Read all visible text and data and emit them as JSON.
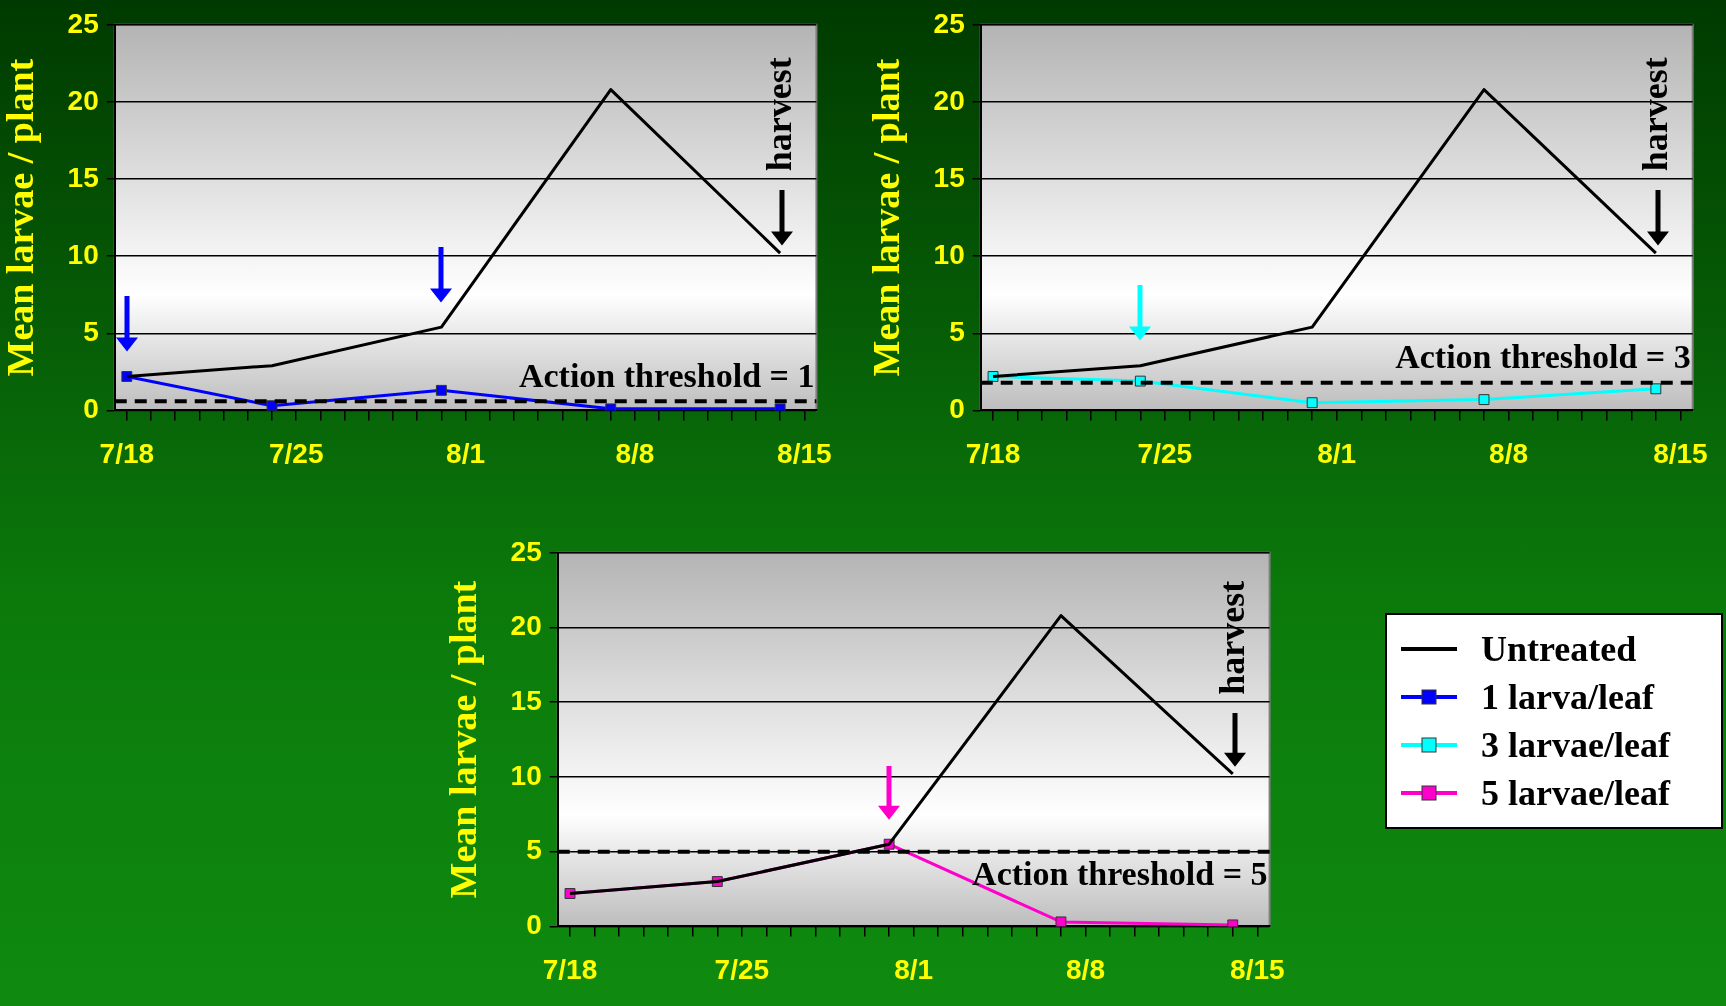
{
  "chart_data": [
    {
      "type": "line",
      "ylabel": "Mean larvae / plant",
      "xlim": [
        "--07-17T12:00",
        "--08-15T12:00"
      ],
      "ylim": [
        0,
        25
      ],
      "yticks": [
        0,
        5,
        10,
        15,
        20,
        25
      ],
      "xticks": [
        {
          "value": "--07-18",
          "label": "7/18"
        },
        {
          "value": "--07-19",
          "label": null
        },
        {
          "value": "--07-20",
          "label": null
        },
        {
          "value": "--07-21",
          "label": null
        },
        {
          "value": "--07-22",
          "label": null
        },
        {
          "value": "--07-23",
          "label": null
        },
        {
          "value": "--07-24",
          "label": null
        },
        {
          "value": "--07-25",
          "label": "7/25"
        },
        {
          "value": "--07-26",
          "label": null
        },
        {
          "value": "--07-27",
          "label": null
        },
        {
          "value": "--07-28",
          "label": null
        },
        {
          "value": "--07-29",
          "label": null
        },
        {
          "value": "--07-30",
          "label": null
        },
        {
          "value": "--07-31",
          "label": null
        },
        {
          "value": "--08-01",
          "label": "8/1"
        },
        {
          "value": "--08-02",
          "label": null
        },
        {
          "value": "--08-03",
          "label": null
        },
        {
          "value": "--08-04",
          "label": null
        },
        {
          "value": "--08-05",
          "label": null
        },
        {
          "value": "--08-06",
          "label": null
        },
        {
          "value": "--08-07",
          "label": null
        },
        {
          "value": "--08-08",
          "label": "8/8"
        },
        {
          "value": "--08-09",
          "label": null
        },
        {
          "value": "--08-10",
          "label": null
        },
        {
          "value": "--08-11",
          "label": null
        },
        {
          "value": "--08-12",
          "label": null
        },
        {
          "value": "--08-13",
          "label": null
        },
        {
          "value": "--08-14",
          "label": null
        },
        {
          "value": "--08-15",
          "label": "8/15"
        }
      ],
      "grid": "y",
      "legend": "right",
      "x": [
        "--07-18",
        "--07-24",
        "--07-31",
        "--08-07",
        "--08-14"
      ],
      "series": [
        {
          "name": "Untreated",
          "color": "#000000",
          "marker": "none",
          "values": [
            2.2,
            2.9,
            5.4,
            20.8,
            10.2
          ]
        },
        {
          "name": "1 larva/leaf",
          "color": "#0000ff",
          "marker": "square",
          "values": [
            2.2,
            0.3,
            1.3,
            0.1,
            0.1
          ]
        }
      ],
      "ref_lines": [
        {
          "axis": "y",
          "value": 0.6,
          "label": "Action threshold = 1",
          "color": "#000000",
          "line_style": "dashed"
        }
      ],
      "annotations": [
        "harvest"
      ]
    },
    {
      "type": "line",
      "ylabel": "Mean larvae / plant",
      "xlim": [
        "--07-17T12:00",
        "--08-15T12:00"
      ],
      "ylim": [
        0,
        25
      ],
      "yticks": [
        0,
        5,
        10,
        15,
        20,
        25
      ],
      "xticks": [
        {
          "value": "--07-18",
          "label": "7/18"
        },
        {
          "value": "--07-19",
          "label": null
        },
        {
          "value": "--07-20",
          "label": null
        },
        {
          "value": "--07-21",
          "label": null
        },
        {
          "value": "--07-22",
          "label": null
        },
        {
          "value": "--07-23",
          "label": null
        },
        {
          "value": "--07-24",
          "label": null
        },
        {
          "value": "--07-25",
          "label": "7/25"
        },
        {
          "value": "--07-26",
          "label": null
        },
        {
          "value": "--07-27",
          "label": null
        },
        {
          "value": "--07-28",
          "label": null
        },
        {
          "value": "--07-29",
          "label": null
        },
        {
          "value": "--07-30",
          "label": null
        },
        {
          "value": "--07-31",
          "label": null
        },
        {
          "value": "--08-01",
          "label": "8/1"
        },
        {
          "value": "--08-02",
          "label": null
        },
        {
          "value": "--08-03",
          "label": null
        },
        {
          "value": "--08-04",
          "label": null
        },
        {
          "value": "--08-05",
          "label": null
        },
        {
          "value": "--08-06",
          "label": null
        },
        {
          "value": "--08-07",
          "label": null
        },
        {
          "value": "--08-08",
          "label": "8/8"
        },
        {
          "value": "--08-09",
          "label": null
        },
        {
          "value": "--08-10",
          "label": null
        },
        {
          "value": "--08-11",
          "label": null
        },
        {
          "value": "--08-12",
          "label": null
        },
        {
          "value": "--08-13",
          "label": null
        },
        {
          "value": "--08-14",
          "label": null
        },
        {
          "value": "--08-15",
          "label": "8/15"
        }
      ],
      "grid": "y",
      "legend": "right",
      "x": [
        "--07-18",
        "--07-24",
        "--07-31",
        "--08-07",
        "--08-14"
      ],
      "series": [
        {
          "name": "Untreated",
          "color": "#000000",
          "marker": "none",
          "values": [
            2.2,
            2.9,
            5.4,
            20.8,
            10.2
          ]
        },
        {
          "name": "3 larvae/leaf",
          "color": "#00ffff",
          "marker": "square",
          "values": [
            2.2,
            1.9,
            0.5,
            0.7,
            1.4
          ]
        }
      ],
      "ref_lines": [
        {
          "axis": "y",
          "value": 1.8,
          "color": "#000000",
          "line_style": "dashed"
        }
      ],
      "annotations": [
        "Action threshold = 3",
        "harvest"
      ]
    },
    {
      "type": "line",
      "ylabel": "Mean larvae / plant",
      "xlim": [
        "--07-17T12:00",
        "--08-15T12:00"
      ],
      "ylim": [
        0,
        25
      ],
      "yticks": [
        0,
        5,
        10,
        15,
        20,
        25
      ],
      "xticks": [
        {
          "value": "--07-18",
          "label": "7/18"
        },
        {
          "value": "--07-19",
          "label": null
        },
        {
          "value": "--07-20",
          "label": null
        },
        {
          "value": "--07-21",
          "label": null
        },
        {
          "value": "--07-22",
          "label": null
        },
        {
          "value": "--07-23",
          "label": null
        },
        {
          "value": "--07-24",
          "label": null
        },
        {
          "value": "--07-25",
          "label": "7/25"
        },
        {
          "value": "--07-26",
          "label": null
        },
        {
          "value": "--07-27",
          "label": null
        },
        {
          "value": "--07-28",
          "label": null
        },
        {
          "value": "--07-29",
          "label": null
        },
        {
          "value": "--07-30",
          "label": null
        },
        {
          "value": "--07-31",
          "label": null
        },
        {
          "value": "--08-01",
          "label": "8/1"
        },
        {
          "value": "--08-02",
          "label": null
        },
        {
          "value": "--08-03",
          "label": null
        },
        {
          "value": "--08-04",
          "label": null
        },
        {
          "value": "--08-05",
          "label": null
        },
        {
          "value": "--08-06",
          "label": null
        },
        {
          "value": "--08-07",
          "label": null
        },
        {
          "value": "--08-08",
          "label": "8/8"
        },
        {
          "value": "--08-09",
          "label": null
        },
        {
          "value": "--08-10",
          "label": null
        },
        {
          "value": "--08-11",
          "label": null
        },
        {
          "value": "--08-12",
          "label": null
        },
        {
          "value": "--08-13",
          "label": null
        },
        {
          "value": "--08-14",
          "label": null
        },
        {
          "value": "--08-15",
          "label": "8/15"
        }
      ],
      "grid": "y",
      "legend": "right",
      "x": [
        "--07-18",
        "--07-24",
        "--07-31",
        "--08-07",
        "--08-14"
      ],
      "series": [
        {
          "name": "Untreated",
          "color": "#000000",
          "marker": "none",
          "values": [
            2.2,
            3.0,
            5.5,
            20.8,
            10.2
          ]
        },
        {
          "name": "5 larvae/leaf",
          "color": "#ff00cc",
          "marker": "square",
          "values": [
            2.2,
            3.0,
            5.5,
            0.3,
            0.1
          ]
        }
      ],
      "ref_lines": [
        {
          "axis": "y",
          "value": 5.0,
          "label": "Action threshold = 5",
          "color": "#000000",
          "line_style": "dashed"
        }
      ],
      "annotations": [
        "harvest"
      ]
    }
  ]
}
